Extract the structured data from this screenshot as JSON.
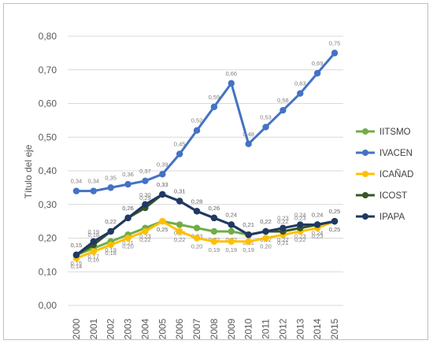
{
  "chart_data": {
    "type": "line",
    "title": "",
    "ylabel": "Título del eje",
    "xlabel": "",
    "ylim": [
      0,
      0.8
    ],
    "ytick_labels": [
      "0,00",
      "0,10",
      "0,20",
      "0,30",
      "0,40",
      "0,50",
      "0,60",
      "0,70",
      "0,80"
    ],
    "grid": true,
    "legend_position": "right",
    "categories": [
      "2000",
      "2001",
      "2002",
      "2003",
      "2004",
      "2005",
      "2006",
      "2007",
      "2008",
      "2009",
      "2010",
      "2011",
      "2012",
      "2013",
      "2014",
      "2015"
    ],
    "series": [
      {
        "name": "IITSMO",
        "color": "#70ad47",
        "values": [
          0.15,
          0.17,
          0.19,
          0.21,
          0.23,
          0.25,
          0.24,
          0.23,
          0.22,
          0.22,
          0.21,
          0.22,
          0.22,
          0.23,
          0.24,
          0.25
        ],
        "labels": [
          "0,15",
          "0,17",
          "0,19",
          "0,21",
          "0,23",
          "0,25",
          "0,24",
          "0,23",
          "0,22",
          "0,22",
          "0,21",
          "0,22",
          "0,22",
          "0,23",
          "0,24",
          "0,25"
        ]
      },
      {
        "name": "IVACEN",
        "color": "#4472c4",
        "values": [
          0.34,
          0.34,
          0.35,
          0.36,
          0.37,
          0.39,
          0.45,
          0.52,
          0.59,
          0.66,
          0.48,
          0.53,
          0.58,
          0.63,
          0.69,
          0.75
        ],
        "labels": [
          "0,34",
          "0,34",
          "0,35",
          "0,36",
          "0,37",
          "0,39",
          "0,45",
          "0,52",
          "0,59",
          "0,66",
          "0,48",
          "0,53",
          "0,58",
          "0,63",
          "0,69",
          "0,75"
        ]
      },
      {
        "name": "ICAÑAD",
        "color": "#ffc000",
        "values": [
          0.14,
          0.16,
          0.18,
          0.2,
          0.22,
          0.25,
          0.22,
          0.2,
          0.19,
          0.19,
          0.19,
          0.2,
          0.21,
          0.22,
          0.23,
          0.25
        ],
        "labels": [
          "0,14",
          "0,16",
          "0,18",
          "0,20",
          "0,22",
          "0,25",
          "0,22",
          "0,20",
          "0,19",
          "0,19",
          "0,19",
          "0,20",
          "0,21",
          "0,22",
          "0,23",
          "0,25"
        ]
      },
      {
        "name": "ICOST",
        "color": "#375623",
        "values": [
          0.15,
          0.18,
          0.22,
          0.26,
          0.29,
          0.33,
          0.31,
          0.28,
          0.26,
          0.24,
          0.21,
          0.22,
          0.22,
          0.23,
          0.24,
          0.25
        ],
        "labels": [
          "0,15",
          "0,18",
          "0,22",
          "0,26",
          "0,29",
          "0,33",
          "0,31",
          "0,28",
          "0,26",
          "0,24",
          "0,21",
          "0,22",
          "0,22",
          "0,23",
          "0,24",
          "0,25"
        ]
      },
      {
        "name": "IPAPA",
        "color": "#203864",
        "values": [
          0.15,
          0.19,
          0.22,
          0.26,
          0.3,
          0.33,
          0.31,
          0.28,
          0.26,
          0.24,
          0.21,
          0.22,
          0.23,
          0.24,
          0.24,
          0.25
        ],
        "labels": [
          "0,15",
          "0,19",
          "0,22",
          "0,26",
          "0,30",
          "0,33",
          "0,31",
          "0,28",
          "0,26",
          "0,24",
          "0,21",
          "0,22",
          "0,23",
          "0,24",
          "0,24",
          "0,25"
        ]
      }
    ]
  }
}
